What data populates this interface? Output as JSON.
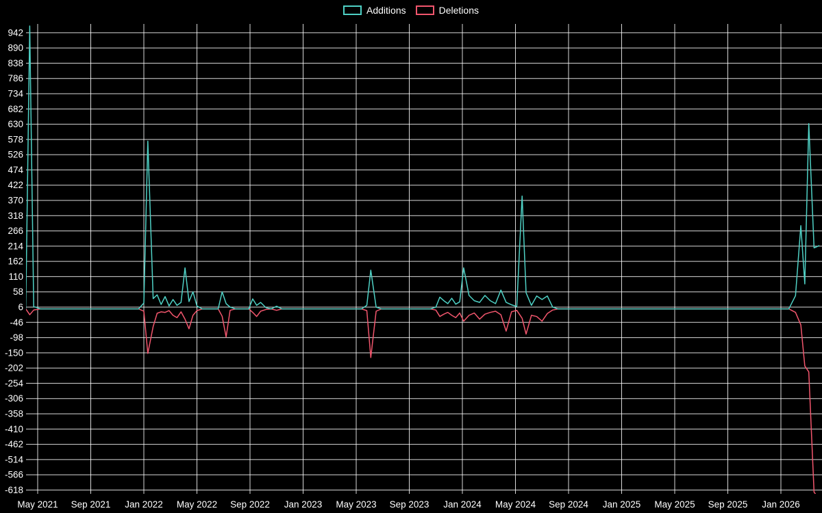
{
  "legend": {
    "additions_label": "Additions",
    "deletions_label": "Deletions"
  },
  "colors": {
    "background": "#000000",
    "grid": "#ffffff",
    "text": "#ffffff",
    "additions": "#4fd1c5",
    "deletions": "#f2566d"
  },
  "chart_data": {
    "type": "line",
    "title": "",
    "xlabel": "",
    "ylabel": "",
    "legend_position": "top-center",
    "grid": true,
    "x_axis": {
      "unit": "months-since-2021-05",
      "min": -0.9,
      "max": 59.1,
      "ticks": [
        {
          "m": 0,
          "label": "May 2021"
        },
        {
          "m": 4,
          "label": "Sep 2021"
        },
        {
          "m": 8,
          "label": "Jan 2022"
        },
        {
          "m": 12,
          "label": "May 2022"
        },
        {
          "m": 16,
          "label": "Sep 2022"
        },
        {
          "m": 20,
          "label": "Jan 2023"
        },
        {
          "m": 24,
          "label": "May 2023"
        },
        {
          "m": 28,
          "label": "Sep 2023"
        },
        {
          "m": 32,
          "label": "Jan 2024"
        },
        {
          "m": 36,
          "label": "May 2024"
        },
        {
          "m": 40,
          "label": "Sep 2024"
        },
        {
          "m": 44,
          "label": "Jan 2025"
        },
        {
          "m": 48,
          "label": "May 2025"
        },
        {
          "m": 52,
          "label": "Sep 2025"
        },
        {
          "m": 56,
          "label": "Jan 2026"
        }
      ]
    },
    "y_axis": {
      "min": -631,
      "max": 972,
      "ticks": [
        942,
        890,
        838,
        786,
        734,
        682,
        630,
        578,
        526,
        474,
        422,
        370,
        318,
        266,
        214,
        162,
        110,
        58,
        6,
        -46,
        -98,
        -150,
        -202,
        -254,
        -306,
        -358,
        -410,
        -462,
        -514,
        -566,
        -618
      ]
    },
    "series": [
      {
        "name": "Additions",
        "color": "#4fd1c5",
        "value_index": 1
      },
      {
        "name": "Deletions",
        "color": "#f2566d",
        "value_index": 2
      }
    ],
    "points": [
      [
        -0.9,
        0,
        0
      ],
      [
        -0.6,
        965,
        -20
      ],
      [
        -0.3,
        8,
        -4
      ],
      [
        0.2,
        0,
        0
      ],
      [
        7.6,
        0,
        0
      ],
      [
        8.0,
        20,
        -8
      ],
      [
        8.3,
        572,
        -152
      ],
      [
        8.7,
        35,
        -60
      ],
      [
        9.0,
        48,
        -15
      ],
      [
        9.3,
        15,
        -10
      ],
      [
        9.6,
        42,
        -12
      ],
      [
        9.9,
        10,
        -6
      ],
      [
        10.2,
        32,
        -22
      ],
      [
        10.5,
        12,
        -30
      ],
      [
        10.8,
        22,
        -10
      ],
      [
        11.1,
        140,
        -35
      ],
      [
        11.4,
        25,
        -68
      ],
      [
        11.7,
        58,
        -22
      ],
      [
        12.0,
        10,
        -6
      ],
      [
        12.4,
        0,
        0
      ],
      [
        13.6,
        0,
        0
      ],
      [
        13.9,
        58,
        -25
      ],
      [
        14.2,
        18,
        -96
      ],
      [
        14.5,
        6,
        -5
      ],
      [
        14.9,
        0,
        0
      ],
      [
        15.9,
        0,
        0
      ],
      [
        16.2,
        34,
        -12
      ],
      [
        16.5,
        12,
        -26
      ],
      [
        16.8,
        22,
        -8
      ],
      [
        17.2,
        4,
        -2
      ],
      [
        17.6,
        0,
        0
      ],
      [
        18.0,
        9,
        -5
      ],
      [
        18.4,
        0,
        0
      ],
      [
        24.4,
        0,
        0
      ],
      [
        24.8,
        12,
        -6
      ],
      [
        25.1,
        132,
        -166
      ],
      [
        25.5,
        6,
        -8
      ],
      [
        25.9,
        0,
        0
      ],
      [
        29.6,
        0,
        0
      ],
      [
        30.0,
        6,
        -4
      ],
      [
        30.3,
        40,
        -26
      ],
      [
        30.6,
        28,
        -18
      ],
      [
        30.9,
        18,
        -12
      ],
      [
        31.2,
        36,
        -22
      ],
      [
        31.5,
        16,
        -30
      ],
      [
        31.8,
        24,
        -14
      ],
      [
        32.1,
        140,
        -42
      ],
      [
        32.5,
        46,
        -22
      ],
      [
        32.9,
        28,
        -14
      ],
      [
        33.3,
        22,
        -35
      ],
      [
        33.7,
        46,
        -18
      ],
      [
        34.1,
        28,
        -12
      ],
      [
        34.5,
        18,
        -8
      ],
      [
        34.9,
        64,
        -20
      ],
      [
        35.3,
        22,
        -76
      ],
      [
        35.7,
        14,
        -10
      ],
      [
        36.1,
        8,
        -5
      ],
      [
        36.5,
        385,
        -32
      ],
      [
        36.8,
        55,
        -86
      ],
      [
        37.2,
        12,
        -22
      ],
      [
        37.6,
        44,
        -26
      ],
      [
        38.0,
        32,
        -42
      ],
      [
        38.4,
        44,
        -16
      ],
      [
        38.8,
        6,
        -4
      ],
      [
        39.2,
        0,
        0
      ],
      [
        56.6,
        0,
        0
      ],
      [
        57.1,
        45,
        -12
      ],
      [
        57.5,
        284,
        -55
      ],
      [
        57.8,
        85,
        -195
      ],
      [
        58.1,
        632,
        -215
      ],
      [
        58.5,
        208,
        -625
      ],
      [
        58.9,
        216,
        -650
      ]
    ]
  }
}
